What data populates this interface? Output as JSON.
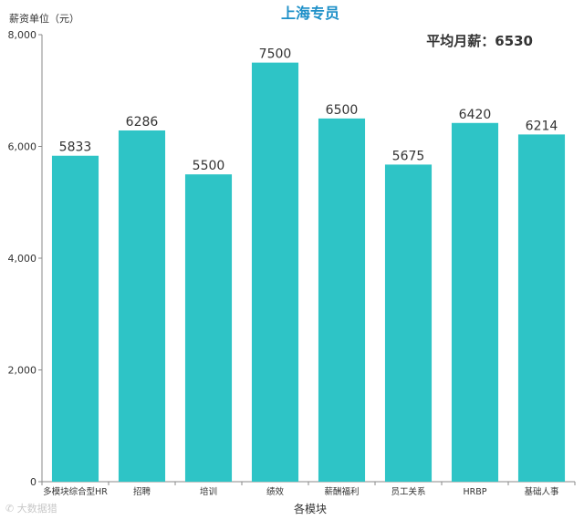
{
  "chart_data": {
    "type": "bar",
    "title": "上海专员",
    "annotation": "平均月薪：6530",
    "unit_label": "薪资单位（元）",
    "xlabel": "各模块",
    "ylabel": "",
    "ylim": [
      0,
      8000
    ],
    "yticks": [
      0,
      2000,
      4000,
      6000,
      8000
    ],
    "ytick_labels": [
      "0",
      "2,000",
      "4,000",
      "6,000",
      "8,000"
    ],
    "categories": [
      "多模块综合型HR",
      "招聘",
      "培训",
      "绩效",
      "薪酬福利",
      "员工关系",
      "HRBP",
      "基础人事"
    ],
    "values": [
      5833,
      6286,
      5500,
      7500,
      6500,
      5675,
      6420,
      6214
    ],
    "bar_color": "#2ec4c6",
    "grid": false,
    "legend": "none"
  },
  "watermark": "大数据猎"
}
